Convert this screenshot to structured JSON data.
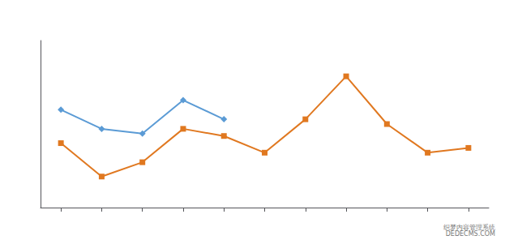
{
  "chart_data": {
    "type": "line",
    "annotations": [
      "织梦内容管理系统\nDEDECMS.COM"
    ],
    "series": [
      {
        "color": "#E07820",
        "marker": "square",
        "x": [
          1,
          2,
          3,
          4,
          5,
          6,
          7,
          8,
          9,
          10,
          11
        ],
        "values": [
          6.2,
          4.8,
          5.4,
          6.8,
          6.5,
          5.8,
          7.2,
          9.0,
          7.0,
          5.8,
          6.0
        ]
      },
      {
        "color": "#5B9BD5",
        "marker": "diamond",
        "x": [
          1,
          2,
          3,
          4,
          5
        ],
        "values": [
          7.6,
          6.8,
          6.6,
          8.0,
          7.2
        ]
      }
    ],
    "xlim": [
      0.5,
      11.5
    ],
    "xticks": [
      1,
      2,
      3,
      4,
      5,
      6,
      7,
      8,
      9,
      10,
      11
    ],
    "ylim": [
      3.5,
      10.5
    ],
    "grid": false,
    "tick_labels": false
  }
}
